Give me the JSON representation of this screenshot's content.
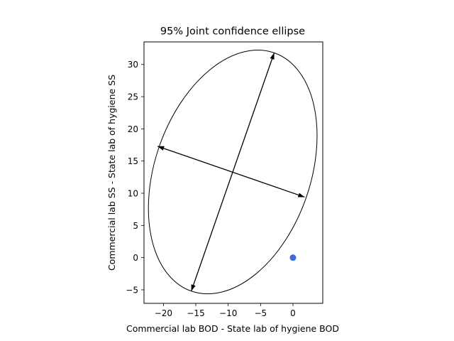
{
  "chart_data": {
    "type": "scatter",
    "title": "95% Joint confidence ellipse",
    "xlabel": "Commercial lab BOD - State lab of hygiene BOD",
    "ylabel": "Commercial lab SS - State lab of hygiene SS",
    "xlim": [
      -23,
      4.6
    ],
    "ylim": [
      -7.1,
      33.5
    ],
    "xticks": [
      -20,
      -15,
      -10,
      -5,
      0
    ],
    "yticks": [
      -5,
      0,
      5,
      10,
      15,
      20,
      25,
      30
    ],
    "grid": false,
    "point": {
      "x": 0,
      "y": 0,
      "color": "#4169e1"
    },
    "ellipse": {
      "center": [
        -9.3,
        13.3
      ],
      "major_axis_endpoints": [
        [
          -2.9,
          31.8
        ],
        [
          -15.7,
          -5.2
        ]
      ],
      "minor_axis_endpoints": [
        [
          -20.9,
          17.3
        ],
        [
          1.8,
          9.4
        ]
      ]
    }
  }
}
